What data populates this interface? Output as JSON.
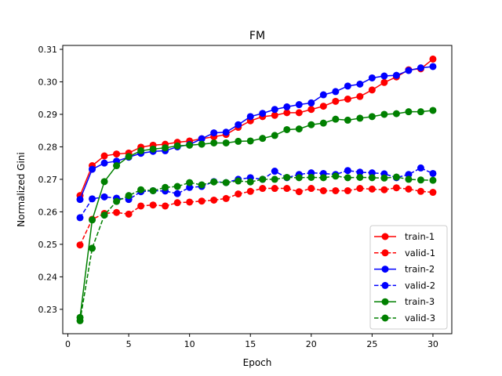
{
  "chart_data": {
    "type": "line",
    "title": "FM",
    "xlabel": "Epoch",
    "ylabel": "Normalized Gini",
    "xlim": [
      -0.42,
      31.55
    ],
    "ylim": [
      0.2225,
      0.3112
    ],
    "xticks": [
      0,
      5,
      10,
      15,
      20,
      25,
      30
    ],
    "yticks": [
      0.23,
      0.24,
      0.25,
      0.26,
      0.27,
      0.28,
      0.29,
      0.3,
      0.31
    ],
    "ytick_labels": [
      "0.23",
      "0.24",
      "0.25",
      "0.26",
      "0.27",
      "0.28",
      "0.29",
      "0.30",
      "0.31"
    ],
    "grid": false,
    "legend_position": "lower-right",
    "x": [
      1,
      2,
      3,
      4,
      5,
      6,
      7,
      8,
      9,
      10,
      11,
      12,
      13,
      14,
      15,
      16,
      17,
      18,
      19,
      20,
      21,
      22,
      23,
      24,
      25,
      26,
      27,
      28,
      29,
      30
    ],
    "series": [
      {
        "name": "train-1",
        "color": "#ff0000",
        "dash": false,
        "values": [
          0.265,
          0.2742,
          0.2772,
          0.2778,
          0.2781,
          0.2799,
          0.2805,
          0.2808,
          0.2814,
          0.2818,
          0.2825,
          0.2831,
          0.2838,
          0.286,
          0.288,
          0.2893,
          0.2897,
          0.2905,
          0.2905,
          0.2915,
          0.2925,
          0.294,
          0.2947,
          0.2955,
          0.2975,
          0.2998,
          0.3015,
          0.3037,
          0.304,
          0.307
        ]
      },
      {
        "name": "valid-1",
        "color": "#ff0000",
        "dash": true,
        "values": [
          0.2498,
          0.2577,
          0.2595,
          0.2598,
          0.2593,
          0.2618,
          0.2621,
          0.2618,
          0.2628,
          0.263,
          0.2633,
          0.2636,
          0.2641,
          0.2655,
          0.2663,
          0.2672,
          0.2672,
          0.2672,
          0.2662,
          0.2672,
          0.2665,
          0.2665,
          0.2665,
          0.2672,
          0.267,
          0.2668,
          0.2674,
          0.267,
          0.2663,
          0.266
        ]
      },
      {
        "name": "train-2",
        "color": "#0000ff",
        "dash": false,
        "values": [
          0.2638,
          0.2731,
          0.275,
          0.2756,
          0.2768,
          0.278,
          0.2786,
          0.2788,
          0.28,
          0.2807,
          0.2825,
          0.2843,
          0.2845,
          0.2868,
          0.2893,
          0.2903,
          0.2915,
          0.2923,
          0.293,
          0.2935,
          0.296,
          0.297,
          0.2987,
          0.2993,
          0.3012,
          0.3018,
          0.302,
          0.3035,
          0.3043,
          0.3047
        ]
      },
      {
        "name": "valid-2",
        "color": "#0000ff",
        "dash": true,
        "values": [
          0.2582,
          0.264,
          0.2646,
          0.2642,
          0.2638,
          0.2662,
          0.2665,
          0.2664,
          0.2656,
          0.2675,
          0.2678,
          0.2693,
          0.269,
          0.27,
          0.2705,
          0.27,
          0.2725,
          0.2705,
          0.2715,
          0.272,
          0.2718,
          0.2715,
          0.2727,
          0.2722,
          0.272,
          0.2717,
          0.2705,
          0.2715,
          0.2735,
          0.2718
        ]
      },
      {
        "name": "train-3",
        "color": "#008000",
        "dash": false,
        "values": [
          0.2275,
          0.2575,
          0.2693,
          0.2742,
          0.277,
          0.2788,
          0.2793,
          0.2797,
          0.2803,
          0.2805,
          0.2808,
          0.2812,
          0.2812,
          0.2817,
          0.2818,
          0.2826,
          0.2835,
          0.2853,
          0.2855,
          0.2868,
          0.2873,
          0.2885,
          0.2882,
          0.2888,
          0.2893,
          0.29,
          0.2902,
          0.2908,
          0.2908,
          0.2912
        ]
      },
      {
        "name": "valid-3",
        "color": "#008000",
        "dash": true,
        "values": [
          0.2265,
          0.2488,
          0.259,
          0.2632,
          0.265,
          0.2668,
          0.2665,
          0.2675,
          0.2678,
          0.269,
          0.2683,
          0.2692,
          0.269,
          0.2695,
          0.2692,
          0.27,
          0.27,
          0.2706,
          0.2705,
          0.2706,
          0.2705,
          0.271,
          0.2705,
          0.2706,
          0.2705,
          0.2704,
          0.2707,
          0.27,
          0.2698,
          0.2697
        ]
      }
    ]
  }
}
